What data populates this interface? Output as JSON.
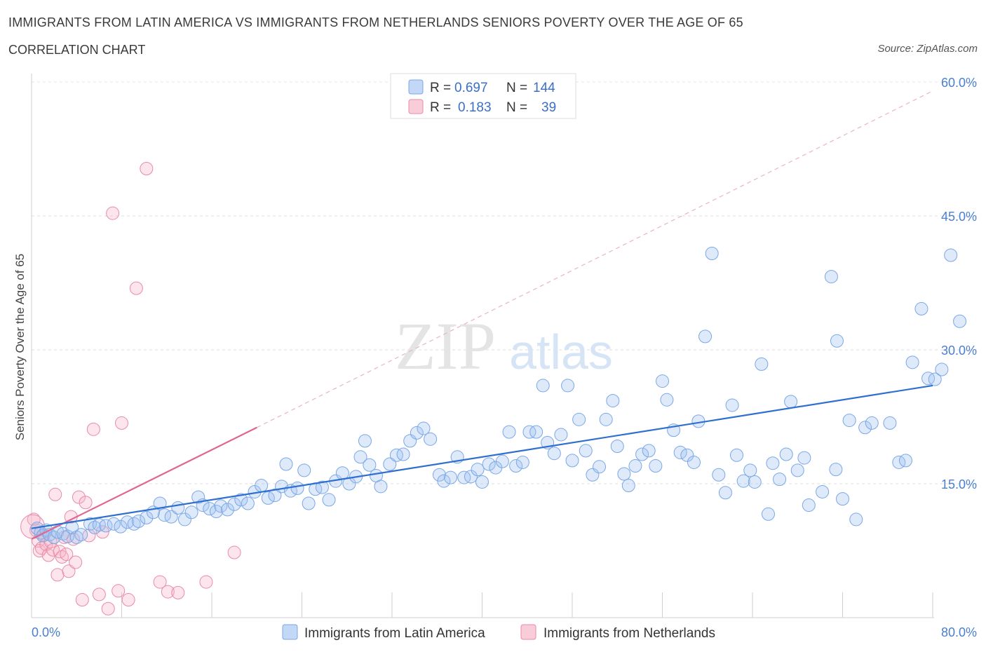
{
  "title": "IMMIGRANTS FROM LATIN AMERICA VS IMMIGRANTS FROM NETHERLANDS SENIORS POVERTY OVER THE AGE OF 65",
  "subtitle": "CORRELATION CHART",
  "source": "Source: ZipAtlas.com",
  "watermark": {
    "zip": "ZIP",
    "atlas": "atlas"
  },
  "legend_top": {
    "rows": [
      {
        "r_label": "R =",
        "r_value": "0.697",
        "n_label": "N =",
        "n_value": "144"
      },
      {
        "r_label": "R =",
        "r_value": "0.183",
        "n_label": "N =",
        "n_value": "39"
      }
    ]
  },
  "colors": {
    "blue": "#7aa7e6",
    "blue_fill": "#aac8f2",
    "blue_line": "#2f6fd0",
    "pink": "#e98aa8",
    "pink_fill": "#f5bfcf",
    "pink_line": "#e0668f",
    "grid": "#dddddd",
    "tick_text": "#4a7fd0"
  },
  "chart_data": {
    "type": "scatter",
    "title": "IMMIGRANTS FROM LATIN AMERICA VS IMMIGRANTS FROM NETHERLANDS SENIORS POVERTY OVER THE AGE OF 65",
    "subtitle": "CORRELATION CHART",
    "xlabel": "",
    "ylabel": "Seniors Poverty Over the Age of 65",
    "xlim": [
      0,
      80
    ],
    "ylim": [
      0,
      60
    ],
    "x_tick_labels": [
      "0.0%",
      "80.0%"
    ],
    "y_tick_labels": [
      "15.0%",
      "30.0%",
      "45.0%",
      "60.0%"
    ],
    "y_ticks": [
      15,
      30,
      45,
      60
    ],
    "grid": true,
    "legend_placement": "bottom-center",
    "series": [
      {
        "name": "Immigrants from Latin America",
        "color": "#7aa7e6",
        "trend": {
          "x": [
            0,
            80
          ],
          "y": [
            10.0,
            26.0
          ]
        },
        "points": [
          [
            0.5,
            10.0
          ],
          [
            0.8,
            9.5
          ],
          [
            1.0,
            9.2
          ],
          [
            1.3,
            9.8
          ],
          [
            1.6,
            9.3
          ],
          [
            2.0,
            9.0
          ],
          [
            2.3,
            9.6
          ],
          [
            2.8,
            9.4
          ],
          [
            3.2,
            9.1
          ],
          [
            3.6,
            10.1
          ],
          [
            4.0,
            9.0
          ],
          [
            4.4,
            9.3
          ],
          [
            5.2,
            10.5
          ],
          [
            5.6,
            10.1
          ],
          [
            6.0,
            10.4
          ],
          [
            6.6,
            10.3
          ],
          [
            7.3,
            10.5
          ],
          [
            7.9,
            10.2
          ],
          [
            8.5,
            10.7
          ],
          [
            9.1,
            10.5
          ],
          [
            9.5,
            10.8
          ],
          [
            10.2,
            11.2
          ],
          [
            10.8,
            11.8
          ],
          [
            11.4,
            12.8
          ],
          [
            11.8,
            11.5
          ],
          [
            12.4,
            11.3
          ],
          [
            13.0,
            12.3
          ],
          [
            13.6,
            11.0
          ],
          [
            14.2,
            11.8
          ],
          [
            14.8,
            13.5
          ],
          [
            15.2,
            12.6
          ],
          [
            15.8,
            12.2
          ],
          [
            16.4,
            11.9
          ],
          [
            16.8,
            12.5
          ],
          [
            17.4,
            12.1
          ],
          [
            18.0,
            12.7
          ],
          [
            18.6,
            13.2
          ],
          [
            19.2,
            12.8
          ],
          [
            19.8,
            14.1
          ],
          [
            20.4,
            14.8
          ],
          [
            21.0,
            13.4
          ],
          [
            21.6,
            13.7
          ],
          [
            22.2,
            14.7
          ],
          [
            22.6,
            17.2
          ],
          [
            23.0,
            14.2
          ],
          [
            23.6,
            14.5
          ],
          [
            24.2,
            16.5
          ],
          [
            24.6,
            12.8
          ],
          [
            25.2,
            14.4
          ],
          [
            25.8,
            14.6
          ],
          [
            26.4,
            13.2
          ],
          [
            27.0,
            15.3
          ],
          [
            27.6,
            16.2
          ],
          [
            28.2,
            15.0
          ],
          [
            28.8,
            15.8
          ],
          [
            29.2,
            18.0
          ],
          [
            29.6,
            19.8
          ],
          [
            30.0,
            17.1
          ],
          [
            30.6,
            15.9
          ],
          [
            31.0,
            14.7
          ],
          [
            31.8,
            17.2
          ],
          [
            32.4,
            18.2
          ],
          [
            33.0,
            18.3
          ],
          [
            33.6,
            19.8
          ],
          [
            34.2,
            20.7
          ],
          [
            34.8,
            21.2
          ],
          [
            35.4,
            20.0
          ],
          [
            36.2,
            16.0
          ],
          [
            36.6,
            15.3
          ],
          [
            37.2,
            15.7
          ],
          [
            37.8,
            18.0
          ],
          [
            38.4,
            15.7
          ],
          [
            39.0,
            15.8
          ],
          [
            39.6,
            16.6
          ],
          [
            40.0,
            15.2
          ],
          [
            40.6,
            17.2
          ],
          [
            41.2,
            16.8
          ],
          [
            41.8,
            17.5
          ],
          [
            42.4,
            20.8
          ],
          [
            43.0,
            17.0
          ],
          [
            43.6,
            17.4
          ],
          [
            44.2,
            20.8
          ],
          [
            44.8,
            20.8
          ],
          [
            45.4,
            26.0
          ],
          [
            45.8,
            19.6
          ],
          [
            46.4,
            18.4
          ],
          [
            47.0,
            20.5
          ],
          [
            47.6,
            26.0
          ],
          [
            48.0,
            17.6
          ],
          [
            48.6,
            22.2
          ],
          [
            49.2,
            18.7
          ],
          [
            49.8,
            16.0
          ],
          [
            50.4,
            16.9
          ],
          [
            51.0,
            22.2
          ],
          [
            51.6,
            24.3
          ],
          [
            52.0,
            19.2
          ],
          [
            52.6,
            16.1
          ],
          [
            53.0,
            14.8
          ],
          [
            53.6,
            17.0
          ],
          [
            54.2,
            18.3
          ],
          [
            54.8,
            18.7
          ],
          [
            55.4,
            17.0
          ],
          [
            56.0,
            26.5
          ],
          [
            56.4,
            24.4
          ],
          [
            57.0,
            21.0
          ],
          [
            57.6,
            18.5
          ],
          [
            58.2,
            18.2
          ],
          [
            58.8,
            17.4
          ],
          [
            59.2,
            22.0
          ],
          [
            59.8,
            31.5
          ],
          [
            60.4,
            40.8
          ],
          [
            61.0,
            16.0
          ],
          [
            61.6,
            14.0
          ],
          [
            62.2,
            23.8
          ],
          [
            62.6,
            18.2
          ],
          [
            63.2,
            15.3
          ],
          [
            63.8,
            16.5
          ],
          [
            64.2,
            15.2
          ],
          [
            64.8,
            28.4
          ],
          [
            65.4,
            11.6
          ],
          [
            65.8,
            17.3
          ],
          [
            66.4,
            15.5
          ],
          [
            67.0,
            18.3
          ],
          [
            67.4,
            24.2
          ],
          [
            68.0,
            16.5
          ],
          [
            68.6,
            17.9
          ],
          [
            69.0,
            12.6
          ],
          [
            70.2,
            14.1
          ],
          [
            71.4,
            16.6
          ],
          [
            72.0,
            13.3
          ],
          [
            72.6,
            22.1
          ],
          [
            73.2,
            11.0
          ],
          [
            74.0,
            21.3
          ],
          [
            74.6,
            21.8
          ],
          [
            76.2,
            21.8
          ],
          [
            77.0,
            17.4
          ],
          [
            77.6,
            17.6
          ],
          [
            78.2,
            28.6
          ],
          [
            79.0,
            34.6
          ],
          [
            79.6,
            26.8
          ],
          [
            80.2,
            26.7
          ],
          [
            80.8,
            27.8
          ],
          [
            81.6,
            40.6
          ],
          [
            82.4,
            33.2
          ],
          [
            71.0,
            38.2
          ],
          [
            71.5,
            31.0
          ]
        ]
      },
      {
        "name": "Immigrants from Netherlands",
        "color": "#e98aa8",
        "trend": {
          "x": [
            0,
            20
          ],
          "y": [
            8.8,
            21.3
          ]
        },
        "trend_extended": {
          "x": [
            20,
            80
          ],
          "y": [
            21.3,
            59.0
          ]
        },
        "points": [
          [
            0.2,
            11.0
          ],
          [
            0.4,
            9.8
          ],
          [
            0.6,
            8.6
          ],
          [
            0.7,
            7.5
          ],
          [
            0.9,
            7.8
          ],
          [
            1.1,
            9.3
          ],
          [
            1.3,
            8.2
          ],
          [
            1.5,
            7.0
          ],
          [
            1.7,
            8.5
          ],
          [
            1.9,
            7.6
          ],
          [
            2.1,
            13.8
          ],
          [
            2.3,
            4.8
          ],
          [
            2.5,
            7.4
          ],
          [
            2.7,
            6.8
          ],
          [
            2.9,
            9.0
          ],
          [
            3.1,
            7.1
          ],
          [
            3.3,
            5.2
          ],
          [
            3.5,
            11.3
          ],
          [
            3.7,
            8.8
          ],
          [
            3.9,
            6.2
          ],
          [
            4.2,
            13.5
          ],
          [
            4.5,
            2.0
          ],
          [
            4.8,
            12.9
          ],
          [
            5.1,
            9.2
          ],
          [
            5.5,
            21.1
          ],
          [
            6.0,
            2.6
          ],
          [
            6.3,
            9.6
          ],
          [
            6.8,
            1.0
          ],
          [
            7.2,
            45.3
          ],
          [
            7.7,
            3.0
          ],
          [
            8.0,
            21.8
          ],
          [
            8.6,
            2.0
          ],
          [
            9.3,
            36.9
          ],
          [
            10.2,
            50.3
          ],
          [
            11.4,
            4.0
          ],
          [
            12.1,
            2.9
          ],
          [
            13.0,
            2.8
          ],
          [
            15.5,
            4.0
          ],
          [
            18.0,
            7.3
          ]
        ]
      }
    ]
  },
  "legend_bottom": {
    "items": [
      "Immigrants from Latin America",
      "Immigrants from Netherlands"
    ]
  }
}
